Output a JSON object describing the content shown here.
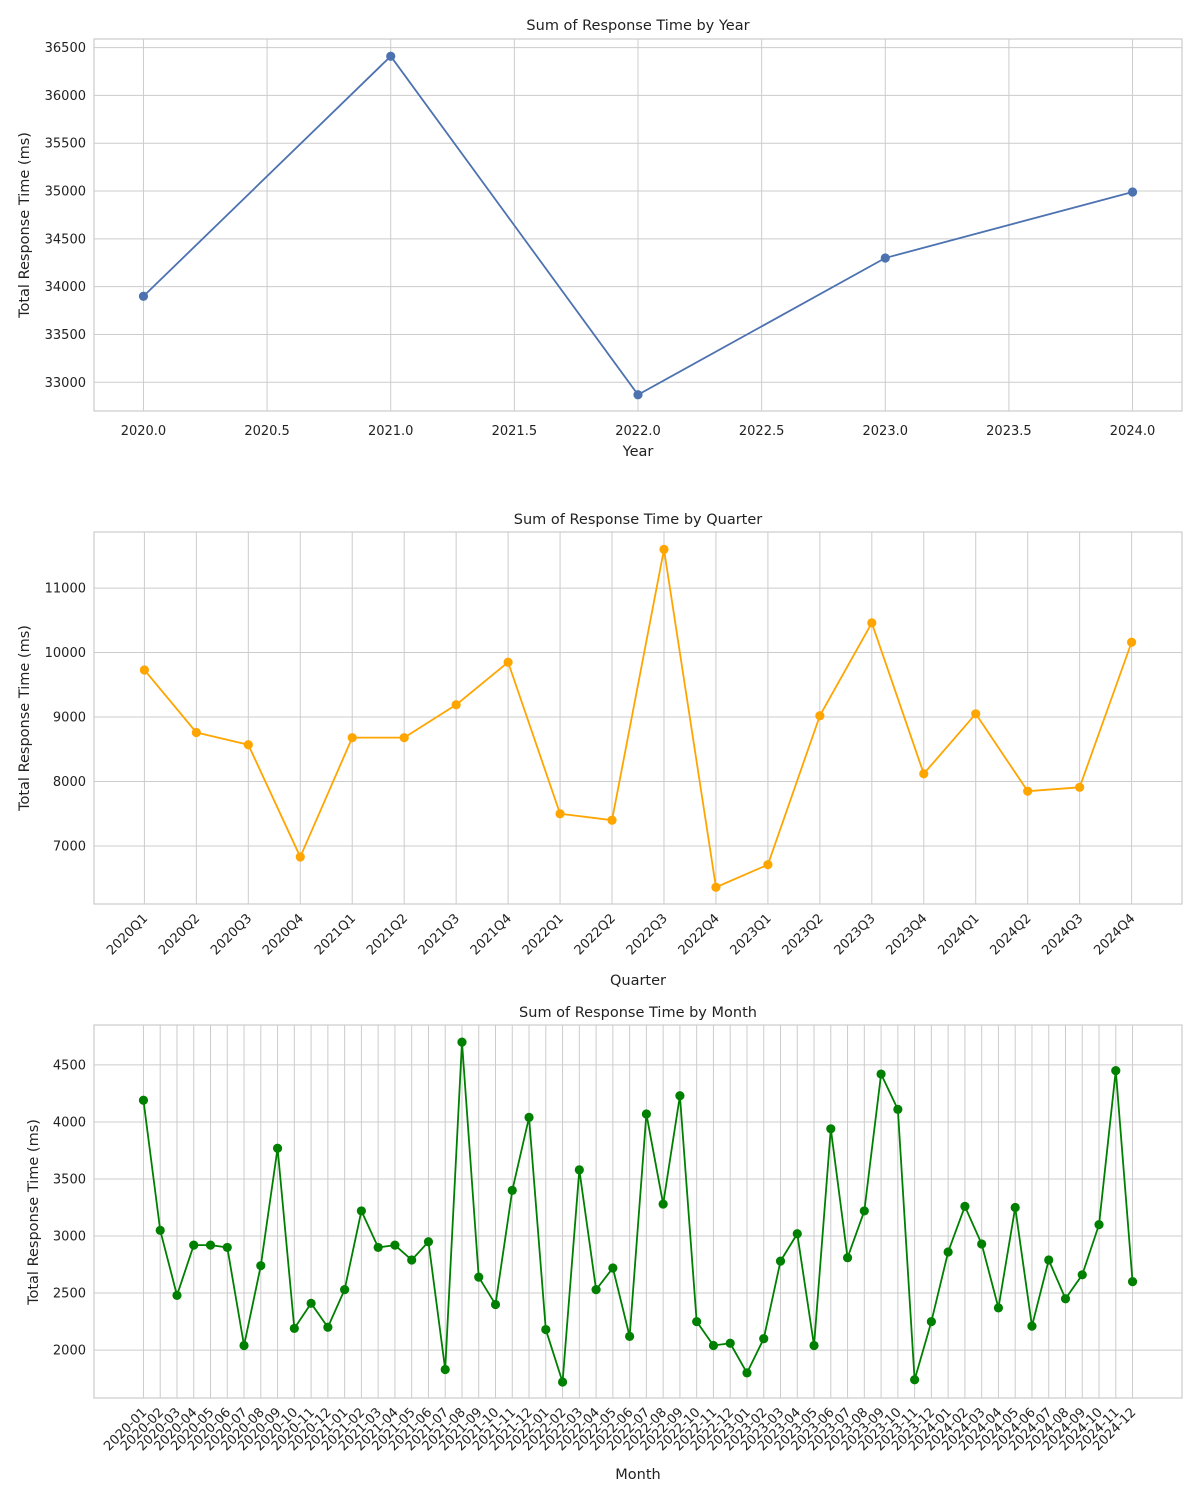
{
  "chart_data": [
    {
      "type": "line",
      "title": "Sum of Response Time by Year",
      "xlabel": "Year",
      "ylabel": "Total Response Time (ms)",
      "color": "#4c72b0",
      "numeric_x": true,
      "x": [
        2020,
        2021,
        2022,
        2023,
        2024
      ],
      "values": [
        33900,
        36410,
        32870,
        34300,
        34990
      ],
      "xticks": [
        2020.0,
        2020.5,
        2021.0,
        2021.5,
        2022.0,
        2022.5,
        2023.0,
        2023.5,
        2024.0
      ],
      "xtick_labels": [
        "2020.0",
        "2020.5",
        "2021.0",
        "2021.5",
        "2022.0",
        "2022.5",
        "2023.0",
        "2023.5",
        "2024.0"
      ],
      "xlim": [
        2019.8,
        2024.2
      ],
      "ylim": [
        32700,
        36590
      ],
      "yticks": [
        33000,
        33500,
        34000,
        34500,
        35000,
        35500,
        36000,
        36500
      ],
      "grid": true
    },
    {
      "type": "line",
      "title": "Sum of Response Time by Quarter",
      "xlabel": "Quarter",
      "ylabel": "Total Response Time (ms)",
      "color": "#ffa500",
      "categories": [
        "2020Q1",
        "2020Q2",
        "2020Q3",
        "2020Q4",
        "2021Q1",
        "2021Q2",
        "2021Q3",
        "2021Q4",
        "2022Q1",
        "2022Q2",
        "2022Q3",
        "2022Q4",
        "2023Q1",
        "2023Q2",
        "2023Q3",
        "2023Q4",
        "2024Q1",
        "2024Q2",
        "2024Q3",
        "2024Q4"
      ],
      "values": [
        9730,
        8760,
        8570,
        6830,
        8680,
        8680,
        9190,
        9850,
        7500,
        7400,
        11600,
        6360,
        6710,
        9020,
        10460,
        8120,
        9050,
        7850,
        7910,
        10160
      ],
      "ylim": [
        6100,
        11870
      ],
      "yticks": [
        7000,
        8000,
        9000,
        10000,
        11000
      ],
      "grid": true
    },
    {
      "type": "line",
      "title": "Sum of Response Time by Month",
      "xlabel": "Month",
      "ylabel": "Total Response Time (ms)",
      "color": "#008000",
      "categories": [
        "2020-01",
        "2020-02",
        "2020-03",
        "2020-04",
        "2020-05",
        "2020-06",
        "2020-07",
        "2020-08",
        "2020-09",
        "2020-10",
        "2020-11",
        "2020-12",
        "2021-01",
        "2021-02",
        "2021-03",
        "2021-04",
        "2021-05",
        "2021-06",
        "2021-07",
        "2021-08",
        "2021-09",
        "2021-10",
        "2021-11",
        "2021-12",
        "2022-01",
        "2022-02",
        "2022-03",
        "2022-04",
        "2022-05",
        "2022-06",
        "2022-07",
        "2022-08",
        "2022-09",
        "2022-10",
        "2022-11",
        "2022-12",
        "2023-01",
        "2023-02",
        "2023-03",
        "2023-04",
        "2023-05",
        "2023-06",
        "2023-07",
        "2023-08",
        "2023-09",
        "2023-10",
        "2023-11",
        "2023-12",
        "2024-01",
        "2024-02",
        "2024-03",
        "2024-04",
        "2024-05",
        "2024-06",
        "2024-07",
        "2024-08",
        "2024-09",
        "2024-10",
        "2024-11",
        "2024-12"
      ],
      "values": [
        4190,
        3050,
        2480,
        2920,
        2920,
        2900,
        2040,
        2740,
        3770,
        2190,
        2410,
        2200,
        2530,
        3220,
        2900,
        2920,
        2790,
        2950,
        1830,
        4700,
        2640,
        2400,
        3400,
        4040,
        2180,
        1720,
        3580,
        2530,
        2720,
        2120,
        4070,
        3280,
        4230,
        2250,
        2040,
        2060,
        1800,
        2100,
        2780,
        3020,
        2040,
        3940,
        2810,
        3220,
        4420,
        4110,
        1740,
        2250,
        2860,
        3260,
        2930,
        2370,
        3250,
        2210,
        2790,
        2450,
        2660,
        3100,
        4450,
        2600
      ],
      "ylim": [
        1580,
        4850
      ],
      "yticks": [
        2000,
        2500,
        3000,
        3500,
        4000,
        4500
      ],
      "grid": true
    }
  ]
}
